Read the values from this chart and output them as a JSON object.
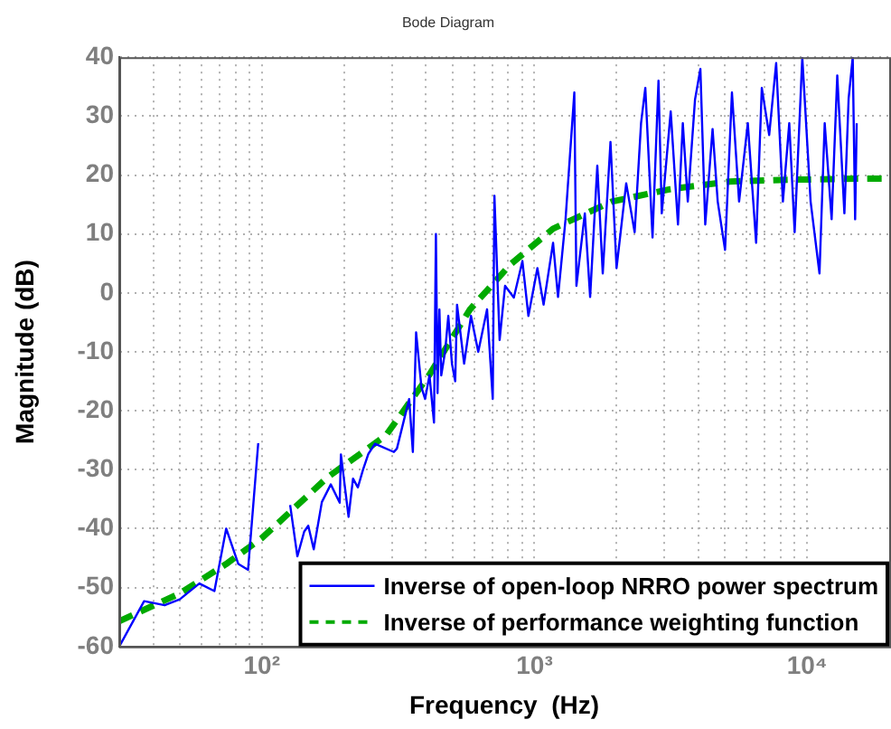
{
  "chart_data": {
    "type": "line",
    "title": "Bode Diagram",
    "xlabel": "Frequency  (Hz)",
    "ylabel": "Magnitude (dB)",
    "log": "x",
    "grid": true,
    "legend": "bottom right",
    "marker": "none",
    "xlim": [
      30,
      20000
    ],
    "xticks": [
      {
        "value": 30,
        "label": null
      },
      {
        "value": 40,
        "label": null
      },
      {
        "value": 50,
        "label": null
      },
      {
        "value": 60,
        "label": null
      },
      {
        "value": 70,
        "label": null
      },
      {
        "value": 80,
        "label": null
      },
      {
        "value": 90,
        "label": null
      },
      {
        "value": 100,
        "label": "10²"
      },
      {
        "value": 200,
        "label": null
      },
      {
        "value": 300,
        "label": null
      },
      {
        "value": 400,
        "label": null
      },
      {
        "value": 500,
        "label": null
      },
      {
        "value": 600,
        "label": null
      },
      {
        "value": 700,
        "label": null
      },
      {
        "value": 800,
        "label": null
      },
      {
        "value": 900,
        "label": null
      },
      {
        "value": 1000,
        "label": "10³"
      },
      {
        "value": 2000,
        "label": null
      },
      {
        "value": 3000,
        "label": null
      },
      {
        "value": 4000,
        "label": null
      },
      {
        "value": 5000,
        "label": null
      },
      {
        "value": 6000,
        "label": null
      },
      {
        "value": 7000,
        "label": null
      },
      {
        "value": 8000,
        "label": null
      },
      {
        "value": 9000,
        "label": null
      },
      {
        "value": 10000,
        "label": "10⁴"
      }
    ],
    "ylim": [
      -60,
      40
    ],
    "yticks": [
      -60,
      -50,
      -40,
      -30,
      -20,
      -10,
      0,
      10,
      20,
      30,
      40
    ],
    "series": [
      {
        "name": "Inverse of open-loop NRRO power spectrum",
        "color": "#0000ff",
        "line_style": "solid",
        "x": [
          30,
          37,
          44,
          50,
          59,
          67,
          74,
          82,
          89,
          97,
          110,
          127,
          135,
          143,
          148,
          155,
          166,
          179,
          193,
          195,
          208,
          216,
          225,
          235,
          246,
          260,
          305,
          313,
          347,
          358,
          368,
          385,
          397,
          412,
          428,
          435,
          441,
          448,
          455,
          470,
          483,
          498,
          512,
          520,
          552,
          585,
          622,
          670,
          703,
          713,
          745,
          780,
          840,
          903,
          950,
          1025,
          1080,
          1170,
          1220,
          1300,
          1400,
          1425,
          1530,
          1600,
          1700,
          1780,
          1900,
          2000,
          2170,
          2330,
          2460,
          2550,
          2710,
          2850,
          2930,
          3160,
          3360,
          3500,
          3650,
          3880,
          4060,
          4230,
          4500,
          4700,
          5000,
          5300,
          5630,
          6060,
          6500,
          6820,
          7260,
          7700,
          8150,
          8600,
          9000,
          9600,
          10300,
          11100,
          11600,
          12300,
          12900,
          13700,
          14200,
          14700,
          15000,
          15200
        ],
        "values": [
          -60,
          -52.3,
          -53,
          -52,
          -49.3,
          -50.6,
          -40,
          -46,
          -47,
          -25.5,
          null,
          -36,
          -44.7,
          -40.5,
          -39.5,
          -43.5,
          -35.5,
          -32.5,
          -35.6,
          -27.4,
          -38,
          -31.5,
          -33,
          -30,
          -27.3,
          -25.6,
          -27,
          -26.4,
          -18,
          -27,
          -6.7,
          -16,
          -18,
          -14,
          -22,
          10,
          -17,
          -2.8,
          -14,
          -10,
          -3.9,
          -12,
          -15,
          -2,
          -12,
          -3.9,
          -10,
          -2.8,
          -18,
          16.5,
          -8,
          1.2,
          -0.8,
          5.4,
          -3.9,
          4.2,
          -2,
          8.5,
          -0.7,
          12.5,
          34,
          1.2,
          13.5,
          -0.7,
          21.6,
          3.3,
          25.6,
          4.2,
          18.6,
          10.3,
          28.8,
          34.8,
          9.4,
          36,
          13.5,
          30.8,
          11.6,
          28.8,
          15.5,
          32.8,
          38,
          11.6,
          27.8,
          15.5,
          7.3,
          34,
          15.5,
          28.8,
          8.5,
          34.8,
          26.8,
          39,
          15.5,
          28.8,
          10.3,
          40,
          15.5,
          3.3,
          28.8,
          12.5,
          36.9,
          13.5,
          33,
          40,
          12.5,
          28.8
        ]
      },
      {
        "name": "Inverse of performance weighting function",
        "color": "#00aa00",
        "line_style": "dashed",
        "x": [
          30,
          50,
          74,
          100,
          174,
          285,
          410,
          450,
          580,
          815,
          1170,
          1920,
          3150,
          5200,
          8600,
          17000,
          20000
        ],
        "values": [
          -55.7,
          -51,
          -46,
          -41.6,
          -31.3,
          -24.2,
          -14,
          -11,
          -2.8,
          4.8,
          10.9,
          15.5,
          17.6,
          18.9,
          19.2,
          19.4,
          19.4
        ]
      }
    ]
  }
}
